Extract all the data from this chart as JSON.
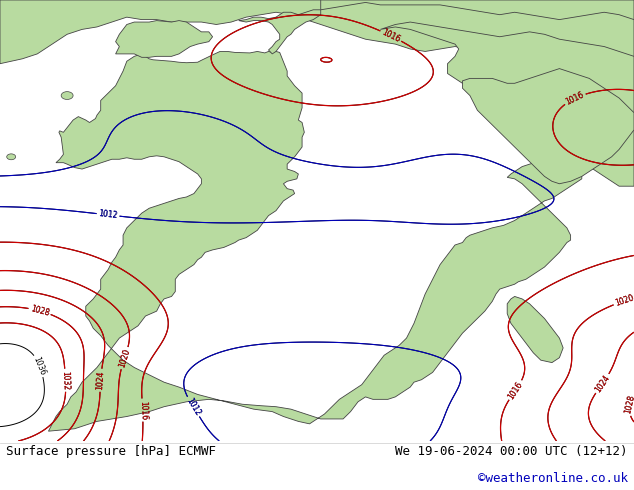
{
  "title_left": "Surface pressure [hPa] ECMWF",
  "title_right": "We 19-06-2024 00:00 UTC (12+12)",
  "title_right2": "©weatheronline.co.uk",
  "bg_color": "#ffffff",
  "map_bg": "#aaccdd",
  "land_color": "#b8dba0",
  "label_color_black": "#000000",
  "label_color_red": "#cc0000",
  "label_color_blue": "#0000bb",
  "contour_color_red": "#cc0000",
  "contour_color_black": "#000000",
  "contour_color_blue": "#0000bb",
  "footer_fontsize": 9,
  "footer_color": "#000000",
  "copyright_color": "#0000bb",
  "xlim": [
    -25,
    60
  ],
  "ylim": [
    -42,
    48
  ],
  "levels": [
    980,
    984,
    988,
    992,
    996,
    1000,
    1004,
    1008,
    1012,
    1013,
    1016,
    1020,
    1024,
    1028,
    1032
  ]
}
